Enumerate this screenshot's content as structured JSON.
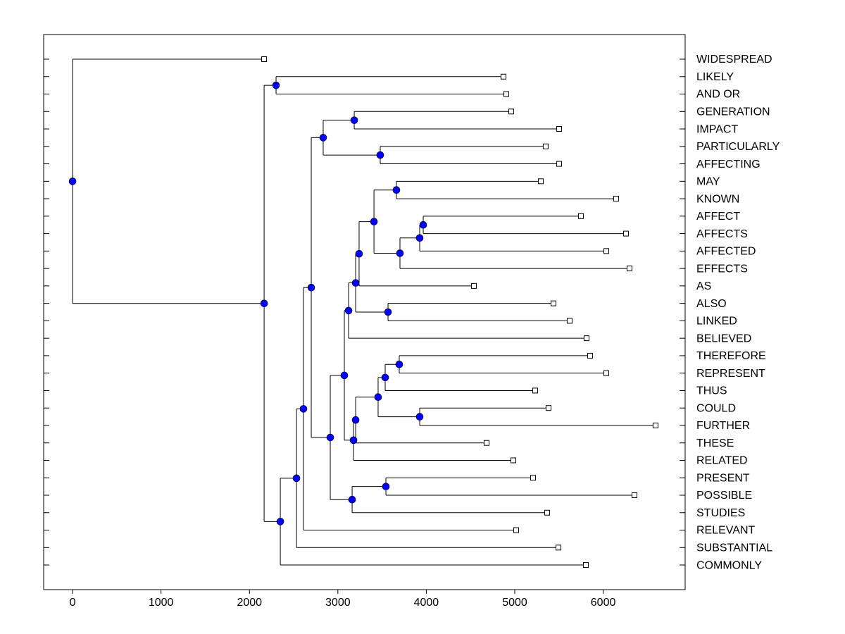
{
  "chart_data": {
    "type": "dendrogram",
    "xlim": [
      -327,
      6927
    ],
    "xticks": [
      0,
      1000,
      2000,
      3000,
      4000,
      5000,
      6000
    ],
    "node_color": "#0000ff",
    "tree": {
      "x": 0,
      "children": [
        {
          "label": "WIDESPREAD",
          "x": 2166
        },
        {
          "x": 2166,
          "children": [
            {
              "x": 2301,
              "children": [
                {
                  "label": "LIKELY",
                  "x": 4873
                },
                {
                  "label": "AND OR",
                  "x": 4904
                }
              ]
            },
            {
              "x": 2349,
              "children": [
                {
                  "x": 2532,
                  "children": [
                    {
                      "x": 2611,
                      "children": [
                        {
                          "x": 2699,
                          "children": [
                            {
                              "x": 2834,
                              "children": [
                                {
                                  "x": 3185,
                                  "children": [
                                    {
                                      "label": "GENERATION",
                                      "x": 4960
                                    },
                                    {
                                      "label": "IMPACT",
                                      "x": 5502
                                    }
                                  ]
                                },
                                {
                                  "x": 3479,
                                  "children": [
                                    {
                                      "label": "PARTICULARLY",
                                      "x": 5350
                                    },
                                    {
                                      "label": "AFFECTING",
                                      "x": 5502
                                    }
                                  ]
                                }
                              ]
                            },
                            {
                              "x": 2914,
                              "children": [
                                {
                                  "x": 3073,
                                  "children": [
                                    {
                                      "x": 3121,
                                      "children": [
                                        {
                                          "x": 3201,
                                          "children": [
                                            {
                                              "x": 3240,
                                              "children": [
                                                {
                                                  "x": 3408,
                                                  "children": [
                                                    {
                                                      "x": 3662,
                                                      "children": [
                                                        {
                                                          "label": "MAY",
                                                          "x": 5295
                                                        },
                                                        {
                                                          "label": "KNOWN",
                                                          "x": 6146
                                                        }
                                                      ]
                                                    },
                                                    {
                                                      "x": 3702,
                                                      "children": [
                                                        {
                                                          "x": 3925,
                                                          "children": [
                                                            {
                                                              "x": 3965,
                                                              "children": [
                                                                {
                                                                  "label": "AFFECT",
                                                                  "x": 5748
                                                                },
                                                                {
                                                                  "label": "AFFECTS",
                                                                  "x": 6258
                                                                }
                                                              ]
                                                            },
                                                            {
                                                              "label": "AFFECTED",
                                                              "x": 6035
                                                            }
                                                          ]
                                                        },
                                                        {
                                                          "label": "EFFECTS",
                                                          "x": 6298
                                                        }
                                                      ]
                                                    }
                                                  ]
                                                },
                                                {
                                                  "label": "AS",
                                                  "x": 4538
                                                }
                                              ]
                                            },
                                            {
                                              "x": 3567,
                                              "children": [
                                                {
                                                  "label": "ALSO",
                                                  "x": 5438
                                                },
                                                {
                                                  "label": "LINKED",
                                                  "x": 5621
                                                }
                                              ]
                                            }
                                          ]
                                        },
                                        {
                                          "label": "BELIEVED",
                                          "x": 5812
                                        }
                                      ]
                                    },
                                    {
                                      "x": 3177,
                                      "children": [
                                        {
                                          "x": 3201,
                                          "children": [
                                            {
                                              "x": 3455,
                                              "children": [
                                                {
                                                  "x": 3535,
                                                  "children": [
                                                    {
                                                      "x": 3694,
                                                      "children": [
                                                        {
                                                          "label": "THEREFORE",
                                                          "x": 5852
                                                        },
                                                        {
                                                          "label": "REPRESENT",
                                                          "x": 6035
                                                        }
                                                      ]
                                                    },
                                                    {
                                                      "label": "THUS",
                                                      "x": 5231
                                                    }
                                                  ]
                                                },
                                                {
                                                  "x": 3925,
                                                  "children": [
                                                    {
                                                      "label": "COULD",
                                                      "x": 5382
                                                    },
                                                    {
                                                      "label": "FURTHER",
                                                      "x": 6592
                                                    }
                                                  ]
                                                }
                                              ]
                                            },
                                            {
                                              "label": "THESE",
                                              "x": 4682
                                            }
                                          ]
                                        },
                                        {
                                          "label": "RELATED",
                                          "x": 4984
                                        }
                                      ]
                                    }
                                  ]
                                },
                                {
                                  "x": 3161,
                                  "children": [
                                    {
                                      "x": 3543,
                                      "children": [
                                        {
                                          "label": "PRESENT",
                                          "x": 5207
                                        },
                                        {
                                          "label": "POSSIBLE",
                                          "x": 6354
                                        }
                                      ]
                                    },
                                    {
                                      "label": "STUDIES",
                                      "x": 5366
                                    }
                                  ]
                                }
                              ]
                            }
                          ]
                        },
                        {
                          "label": "RELEVANT",
                          "x": 5016
                        }
                      ]
                    },
                    {
                      "label": "SUBSTANTIAL",
                      "x": 5494
                    }
                  ]
                },
                {
                  "label": "COMMONLY",
                  "x": 5804
                }
              ]
            }
          ]
        }
      ]
    }
  }
}
